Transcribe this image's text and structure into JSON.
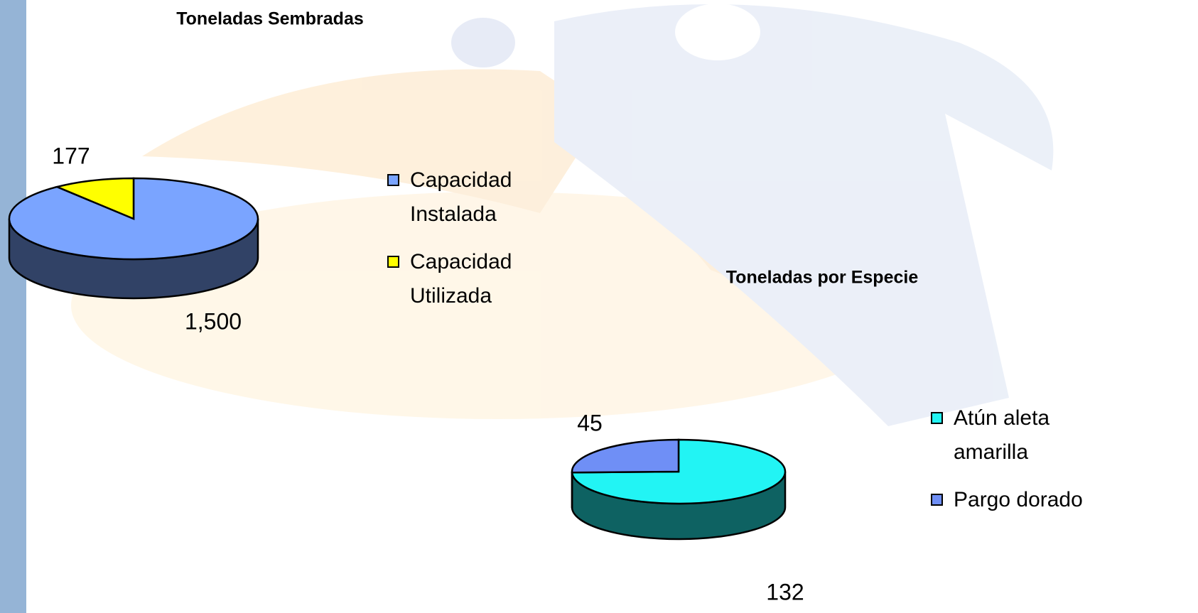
{
  "chart_data": [
    {
      "type": "pie",
      "title": "Toneladas Sembradas",
      "categories": [
        "Capacidad Instalada",
        "Capacidad Utilizada"
      ],
      "values": [
        1500,
        177
      ],
      "value_labels": [
        "1,500",
        "177"
      ],
      "colors": [
        "#7aa4ff",
        "#ffff00"
      ]
    },
    {
      "type": "pie",
      "title": "Toneladas por Especie",
      "categories": [
        "Atún aleta amarilla",
        "Pargo dorado"
      ],
      "values": [
        132,
        45
      ],
      "value_labels": [
        "132",
        "45"
      ],
      "colors": [
        "#22f4f4",
        "#6f8ff6"
      ]
    }
  ]
}
